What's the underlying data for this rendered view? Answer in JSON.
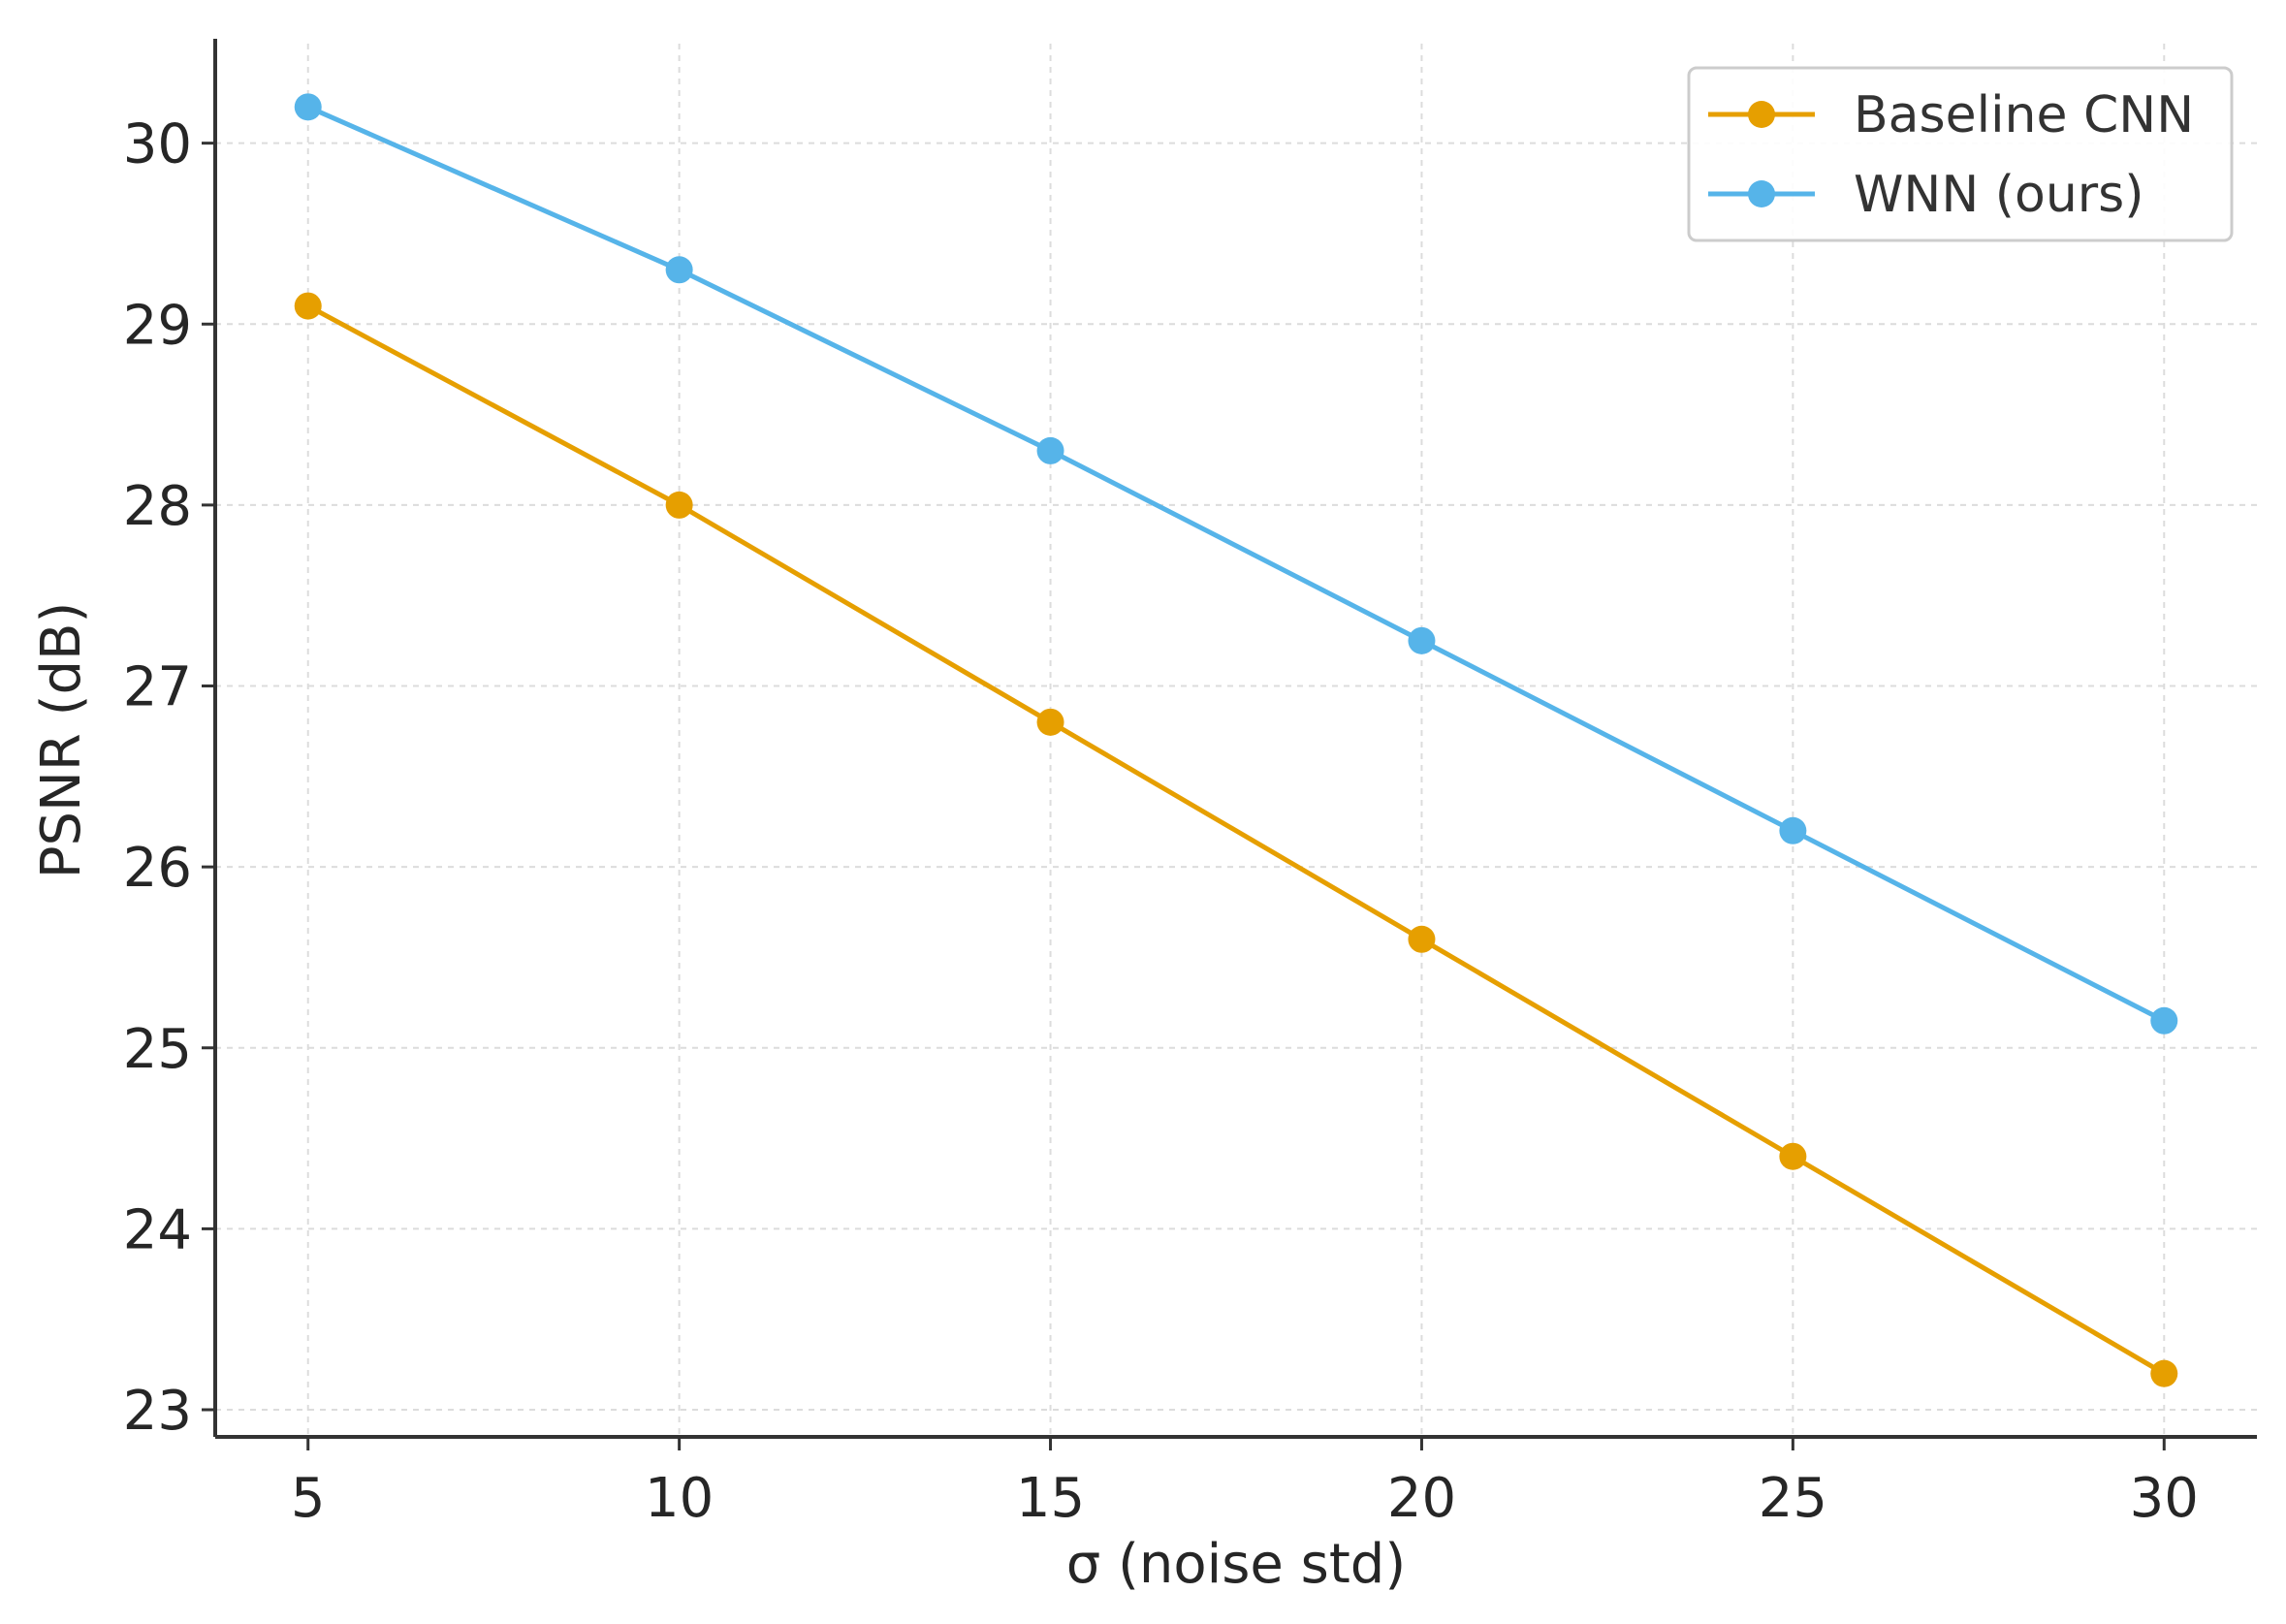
{
  "chart_data": {
    "type": "line",
    "xlabel": "σ (noise std)",
    "ylabel": "PSNR (dB)",
    "x": [
      5,
      10,
      15,
      20,
      25,
      30
    ],
    "xticks": [
      5,
      10,
      15,
      20,
      25,
      30
    ],
    "yticks": [
      23,
      24,
      25,
      26,
      27,
      28,
      29,
      30
    ],
    "xlim": [
      3.75,
      31.25
    ],
    "ylim": [
      22.85,
      30.55
    ],
    "grid": true,
    "legend_position": "top-right",
    "series": [
      {
        "name": "Baseline CNN",
        "color": "#E69F00",
        "values": [
          29.1,
          28.0,
          26.8,
          25.6,
          24.4,
          23.2
        ]
      },
      {
        "name": "WNN (ours)",
        "color": "#56B4E9",
        "values": [
          30.2,
          29.3,
          28.3,
          27.25,
          26.2,
          25.15
        ]
      }
    ]
  }
}
